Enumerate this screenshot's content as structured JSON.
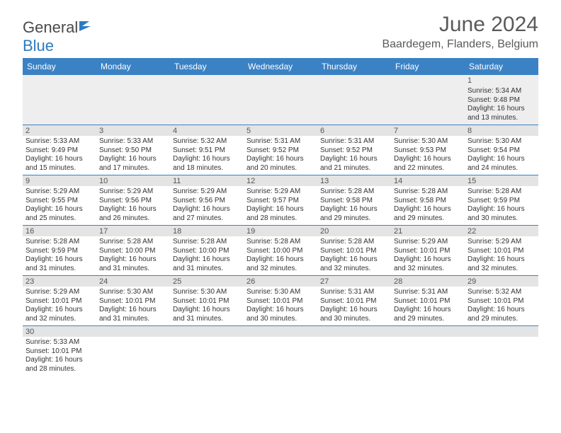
{
  "logo": {
    "part1": "General",
    "part2": "Blue"
  },
  "title": "June 2024",
  "location": "Baardegem, Flanders, Belgium",
  "colors": {
    "header_bg": "#3b82c4",
    "header_text": "#ffffff",
    "daynum_bg": "#e4e4e4",
    "border": "#3b82c4",
    "logo_gray": "#4a4a4a",
    "logo_blue": "#2b7bbf"
  },
  "day_names": [
    "Sunday",
    "Monday",
    "Tuesday",
    "Wednesday",
    "Thursday",
    "Friday",
    "Saturday"
  ],
  "weeks": [
    {
      "nums": [
        "",
        "",
        "",
        "",
        "",
        "",
        "1"
      ],
      "cells": [
        null,
        null,
        null,
        null,
        null,
        null,
        {
          "sunrise": "Sunrise: 5:34 AM",
          "sunset": "Sunset: 9:48 PM",
          "day1": "Daylight: 16 hours",
          "day2": "and 13 minutes."
        }
      ]
    },
    {
      "nums": [
        "2",
        "3",
        "4",
        "5",
        "6",
        "7",
        "8"
      ],
      "cells": [
        {
          "sunrise": "Sunrise: 5:33 AM",
          "sunset": "Sunset: 9:49 PM",
          "day1": "Daylight: 16 hours",
          "day2": "and 15 minutes."
        },
        {
          "sunrise": "Sunrise: 5:33 AM",
          "sunset": "Sunset: 9:50 PM",
          "day1": "Daylight: 16 hours",
          "day2": "and 17 minutes."
        },
        {
          "sunrise": "Sunrise: 5:32 AM",
          "sunset": "Sunset: 9:51 PM",
          "day1": "Daylight: 16 hours",
          "day2": "and 18 minutes."
        },
        {
          "sunrise": "Sunrise: 5:31 AM",
          "sunset": "Sunset: 9:52 PM",
          "day1": "Daylight: 16 hours",
          "day2": "and 20 minutes."
        },
        {
          "sunrise": "Sunrise: 5:31 AM",
          "sunset": "Sunset: 9:52 PM",
          "day1": "Daylight: 16 hours",
          "day2": "and 21 minutes."
        },
        {
          "sunrise": "Sunrise: 5:30 AM",
          "sunset": "Sunset: 9:53 PM",
          "day1": "Daylight: 16 hours",
          "day2": "and 22 minutes."
        },
        {
          "sunrise": "Sunrise: 5:30 AM",
          "sunset": "Sunset: 9:54 PM",
          "day1": "Daylight: 16 hours",
          "day2": "and 24 minutes."
        }
      ]
    },
    {
      "nums": [
        "9",
        "10",
        "11",
        "12",
        "13",
        "14",
        "15"
      ],
      "cells": [
        {
          "sunrise": "Sunrise: 5:29 AM",
          "sunset": "Sunset: 9:55 PM",
          "day1": "Daylight: 16 hours",
          "day2": "and 25 minutes."
        },
        {
          "sunrise": "Sunrise: 5:29 AM",
          "sunset": "Sunset: 9:56 PM",
          "day1": "Daylight: 16 hours",
          "day2": "and 26 minutes."
        },
        {
          "sunrise": "Sunrise: 5:29 AM",
          "sunset": "Sunset: 9:56 PM",
          "day1": "Daylight: 16 hours",
          "day2": "and 27 minutes."
        },
        {
          "sunrise": "Sunrise: 5:29 AM",
          "sunset": "Sunset: 9:57 PM",
          "day1": "Daylight: 16 hours",
          "day2": "and 28 minutes."
        },
        {
          "sunrise": "Sunrise: 5:28 AM",
          "sunset": "Sunset: 9:58 PM",
          "day1": "Daylight: 16 hours",
          "day2": "and 29 minutes."
        },
        {
          "sunrise": "Sunrise: 5:28 AM",
          "sunset": "Sunset: 9:58 PM",
          "day1": "Daylight: 16 hours",
          "day2": "and 29 minutes."
        },
        {
          "sunrise": "Sunrise: 5:28 AM",
          "sunset": "Sunset: 9:59 PM",
          "day1": "Daylight: 16 hours",
          "day2": "and 30 minutes."
        }
      ]
    },
    {
      "nums": [
        "16",
        "17",
        "18",
        "19",
        "20",
        "21",
        "22"
      ],
      "cells": [
        {
          "sunrise": "Sunrise: 5:28 AM",
          "sunset": "Sunset: 9:59 PM",
          "day1": "Daylight: 16 hours",
          "day2": "and 31 minutes."
        },
        {
          "sunrise": "Sunrise: 5:28 AM",
          "sunset": "Sunset: 10:00 PM",
          "day1": "Daylight: 16 hours",
          "day2": "and 31 minutes."
        },
        {
          "sunrise": "Sunrise: 5:28 AM",
          "sunset": "Sunset: 10:00 PM",
          "day1": "Daylight: 16 hours",
          "day2": "and 31 minutes."
        },
        {
          "sunrise": "Sunrise: 5:28 AM",
          "sunset": "Sunset: 10:00 PM",
          "day1": "Daylight: 16 hours",
          "day2": "and 32 minutes."
        },
        {
          "sunrise": "Sunrise: 5:28 AM",
          "sunset": "Sunset: 10:01 PM",
          "day1": "Daylight: 16 hours",
          "day2": "and 32 minutes."
        },
        {
          "sunrise": "Sunrise: 5:29 AM",
          "sunset": "Sunset: 10:01 PM",
          "day1": "Daylight: 16 hours",
          "day2": "and 32 minutes."
        },
        {
          "sunrise": "Sunrise: 5:29 AM",
          "sunset": "Sunset: 10:01 PM",
          "day1": "Daylight: 16 hours",
          "day2": "and 32 minutes."
        }
      ]
    },
    {
      "nums": [
        "23",
        "24",
        "25",
        "26",
        "27",
        "28",
        "29"
      ],
      "cells": [
        {
          "sunrise": "Sunrise: 5:29 AM",
          "sunset": "Sunset: 10:01 PM",
          "day1": "Daylight: 16 hours",
          "day2": "and 32 minutes."
        },
        {
          "sunrise": "Sunrise: 5:30 AM",
          "sunset": "Sunset: 10:01 PM",
          "day1": "Daylight: 16 hours",
          "day2": "and 31 minutes."
        },
        {
          "sunrise": "Sunrise: 5:30 AM",
          "sunset": "Sunset: 10:01 PM",
          "day1": "Daylight: 16 hours",
          "day2": "and 31 minutes."
        },
        {
          "sunrise": "Sunrise: 5:30 AM",
          "sunset": "Sunset: 10:01 PM",
          "day1": "Daylight: 16 hours",
          "day2": "and 30 minutes."
        },
        {
          "sunrise": "Sunrise: 5:31 AM",
          "sunset": "Sunset: 10:01 PM",
          "day1": "Daylight: 16 hours",
          "day2": "and 30 minutes."
        },
        {
          "sunrise": "Sunrise: 5:31 AM",
          "sunset": "Sunset: 10:01 PM",
          "day1": "Daylight: 16 hours",
          "day2": "and 29 minutes."
        },
        {
          "sunrise": "Sunrise: 5:32 AM",
          "sunset": "Sunset: 10:01 PM",
          "day1": "Daylight: 16 hours",
          "day2": "and 29 minutes."
        }
      ]
    },
    {
      "nums": [
        "30",
        "",
        "",
        "",
        "",
        "",
        ""
      ],
      "cells": [
        {
          "sunrise": "Sunrise: 5:33 AM",
          "sunset": "Sunset: 10:01 PM",
          "day1": "Daylight: 16 hours",
          "day2": "and 28 minutes."
        },
        null,
        null,
        null,
        null,
        null,
        null
      ]
    }
  ]
}
